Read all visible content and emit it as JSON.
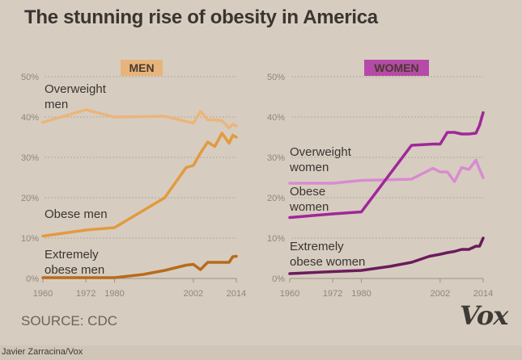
{
  "title": "The stunning rise of obesity in America",
  "source": "SOURCE: CDC",
  "logo": "Vox",
  "credit": "Javier Zarracina/Vox",
  "colors": {
    "background": "#d6cdc0",
    "men_badge": "#e8b47c",
    "women_badge": "#b54aa8",
    "men_overweight": "#ebb57c",
    "men_obese": "#e39a3f",
    "men_extreme": "#b96b1a",
    "women_overweight": "#d98bd0",
    "women_obese": "#a0279a",
    "women_extreme": "#6c1a5c",
    "grid": "#b3a99b",
    "text": "#3b3530"
  },
  "chart_data": [
    {
      "type": "line",
      "title": "MEN",
      "xlabel": "",
      "ylabel": "",
      "ylim": [
        0,
        50
      ],
      "xlim": [
        1960,
        2014
      ],
      "y_ticks": [
        "0%",
        "10%",
        "20%",
        "30%",
        "40%",
        "50%"
      ],
      "x_ticks": [
        "1960",
        "1972",
        "1980",
        "2002",
        "2014"
      ],
      "grid": true,
      "series": [
        {
          "name": "Overweight men",
          "label_lines": [
            "Overweight",
            "men"
          ],
          "color": "#ebb57c",
          "x": [
            1960,
            1972,
            1980,
            1994,
            2002,
            2004,
            2006,
            2008,
            2010,
            2012,
            2013,
            2014
          ],
          "y": [
            38.7,
            41.8,
            40.0,
            40.2,
            38.5,
            41.4,
            39.3,
            39.3,
            39.1,
            37.3,
            38.2,
            37.8
          ]
        },
        {
          "name": "Obese men",
          "label_lines": [
            "Obese men"
          ],
          "color": "#e39a3f",
          "x": [
            1960,
            1972,
            1980,
            1994,
            2000,
            2002,
            2004,
            2006,
            2008,
            2010,
            2012,
            2013,
            2014
          ],
          "y": [
            10.5,
            12.0,
            12.6,
            20.0,
            27.5,
            28.0,
            31.1,
            33.8,
            32.7,
            36.0,
            33.5,
            35.5,
            35.0
          ]
        },
        {
          "name": "Extremely obese men",
          "label_lines": [
            "Extremely",
            "obese men"
          ],
          "color": "#b96b1a",
          "x": [
            1960,
            1972,
            1980,
            1988,
            1994,
            2000,
            2002,
            2004,
            2006,
            2008,
            2010,
            2012,
            2013,
            2014
          ],
          "y": [
            0.2,
            0.2,
            0.2,
            1.0,
            2.0,
            3.3,
            3.5,
            2.2,
            4.0,
            4.0,
            4.0,
            4.0,
            5.4,
            5.5
          ]
        }
      ]
    },
    {
      "type": "line",
      "title": "WOMEN",
      "xlabel": "",
      "ylabel": "",
      "ylim": [
        0,
        50
      ],
      "xlim": [
        1960,
        2014
      ],
      "y_ticks": [
        "0%",
        "10%",
        "20%",
        "30%",
        "40%",
        "50%"
      ],
      "x_ticks": [
        "1960",
        "1972",
        "1980",
        "2002",
        "2014"
      ],
      "grid": true,
      "series": [
        {
          "name": "Overweight women",
          "label_lines": [
            "Overweight",
            "women"
          ],
          "color": "#d98bd0",
          "x": [
            1960,
            1972,
            1980,
            1994,
            2000,
            2002,
            2004,
            2006,
            2008,
            2010,
            2012,
            2013,
            2014
          ],
          "y": [
            23.6,
            23.6,
            24.3,
            24.6,
            27.3,
            26.4,
            26.4,
            24.0,
            27.5,
            27.0,
            29.3,
            27.0,
            25.0
          ]
        },
        {
          "name": "Obese women",
          "label_lines": [
            "Obese",
            "women"
          ],
          "color": "#a0279a",
          "x": [
            1960,
            1972,
            1980,
            1994,
            2000,
            2002,
            2004,
            2006,
            2008,
            2010,
            2012,
            2013,
            2014
          ],
          "y": [
            15.1,
            16.0,
            16.5,
            33.0,
            33.3,
            33.3,
            36.2,
            36.2,
            35.8,
            35.8,
            36.0,
            38.0,
            41.1
          ]
        },
        {
          "name": "Extremely obese women",
          "label_lines": [
            "Extremely",
            "obese women"
          ],
          "color": "#6c1a5c",
          "x": [
            1960,
            1972,
            1980,
            1988,
            1994,
            1999,
            2002,
            2004,
            2006,
            2008,
            2010,
            2012,
            2013,
            2014
          ],
          "y": [
            1.2,
            1.7,
            2.0,
            3.0,
            4.0,
            5.5,
            6.0,
            6.4,
            6.7,
            7.2,
            7.2,
            8.0,
            8.0,
            10.0
          ]
        }
      ]
    }
  ]
}
